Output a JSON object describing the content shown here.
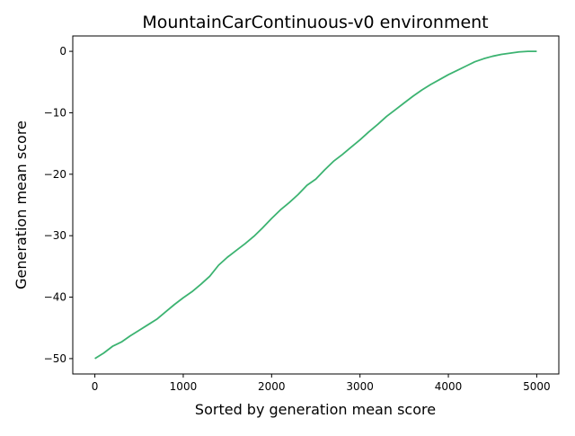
{
  "chart_data": {
    "type": "line",
    "title": "MountainCarContinuous-v0 environment",
    "xlabel": "Sorted by generation mean score",
    "ylabel": "Generation mean score",
    "xlim": [
      -250,
      5250
    ],
    "ylim": [
      -52.5,
      2.5
    ],
    "xticks": [
      0,
      1000,
      2000,
      3000,
      4000,
      5000
    ],
    "yticks": [
      -50,
      -40,
      -30,
      -20,
      -10,
      0
    ],
    "ytick_labels": [
      "−50",
      "−40",
      "−30",
      "−20",
      "−10",
      "0"
    ],
    "grid": false,
    "series": [
      {
        "color": "#3cb371",
        "x": [
          0,
          100,
          200,
          300,
          400,
          500,
          600,
          700,
          800,
          900,
          1000,
          1100,
          1200,
          1300,
          1400,
          1500,
          1600,
          1700,
          1800,
          1900,
          2000,
          2100,
          2200,
          2300,
          2400,
          2500,
          2600,
          2700,
          2800,
          2900,
          3000,
          3100,
          3200,
          3300,
          3400,
          3500,
          3600,
          3700,
          3800,
          3900,
          4000,
          4100,
          4200,
          4300,
          4400,
          4500,
          4600,
          4700,
          4800,
          4900,
          5000
        ],
        "y": [
          -50.0,
          -49.1,
          -48.0,
          -47.3,
          -46.3,
          -45.4,
          -44.5,
          -43.6,
          -42.4,
          -41.2,
          -40.1,
          -39.1,
          -37.9,
          -36.6,
          -34.8,
          -33.5,
          -32.4,
          -31.3,
          -30.1,
          -28.7,
          -27.2,
          -25.8,
          -24.6,
          -23.3,
          -21.8,
          -20.8,
          -19.3,
          -17.9,
          -16.8,
          -15.6,
          -14.4,
          -13.1,
          -11.9,
          -10.6,
          -9.5,
          -8.4,
          -7.3,
          -6.3,
          -5.4,
          -4.6,
          -3.8,
          -3.1,
          -2.4,
          -1.7,
          -1.2,
          -0.8,
          -0.5,
          -0.3,
          -0.1,
          0.0,
          0.0
        ]
      }
    ]
  }
}
